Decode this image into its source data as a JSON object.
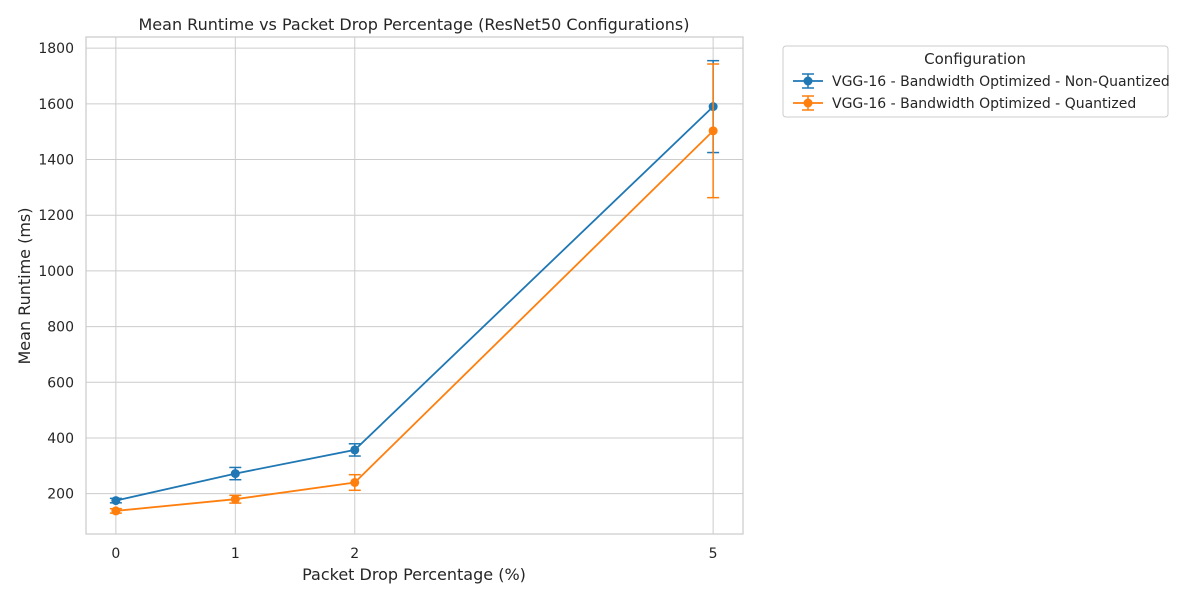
{
  "chart_data": {
    "type": "line",
    "title": "Mean Runtime vs Packet Drop Percentage (ResNet50 Configurations)",
    "xlabel": "Packet Drop Percentage (%)",
    "ylabel": "Mean Runtime (ms)",
    "x": [
      0,
      1,
      2,
      5
    ],
    "x_ticks": [
      "0",
      "1",
      "2",
      "5"
    ],
    "xlim": [
      -0.25,
      5.25
    ],
    "ylim": [
      55,
      1840
    ],
    "y_ticks": [
      200,
      400,
      600,
      800,
      1000,
      1200,
      1400,
      1600,
      1800
    ],
    "grid": true,
    "legend": {
      "title": "Configuration",
      "placement": "outside-top-right"
    },
    "series": [
      {
        "name": "VGG-16 - Bandwidth Optimized - Non-Quantized",
        "color": "#1f77b4",
        "values": [
          175,
          272,
          357,
          1590
        ],
        "error": [
          8,
          22,
          22,
          165
        ]
      },
      {
        "name": "VGG-16 - Bandwidth Optimized - Quantized",
        "color": "#ff7f0e",
        "values": [
          138,
          180,
          240,
          1503
        ],
        "error": [
          8,
          14,
          28,
          240
        ]
      }
    ]
  }
}
